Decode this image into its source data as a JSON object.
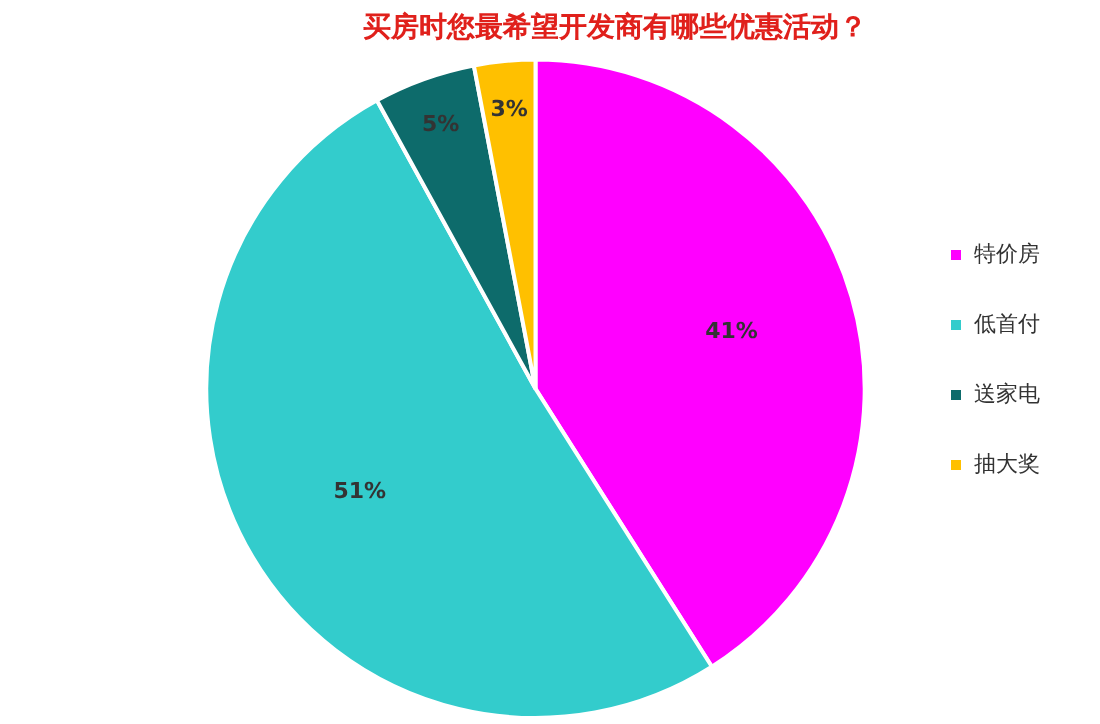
{
  "chart_data": {
    "type": "pie",
    "title": "买房时您最希望开发商有哪些优惠活动？",
    "categories": [
      "特价房",
      "低首付",
      "送家电",
      "抽大奖"
    ],
    "values": [
      41,
      51,
      5,
      3
    ],
    "colors": [
      "#ff00ff",
      "#33cccc",
      "#0d6b6b",
      "#ffc000"
    ],
    "value_labels": [
      "41%",
      "51%",
      "5%",
      "3%"
    ],
    "legend": "right"
  }
}
